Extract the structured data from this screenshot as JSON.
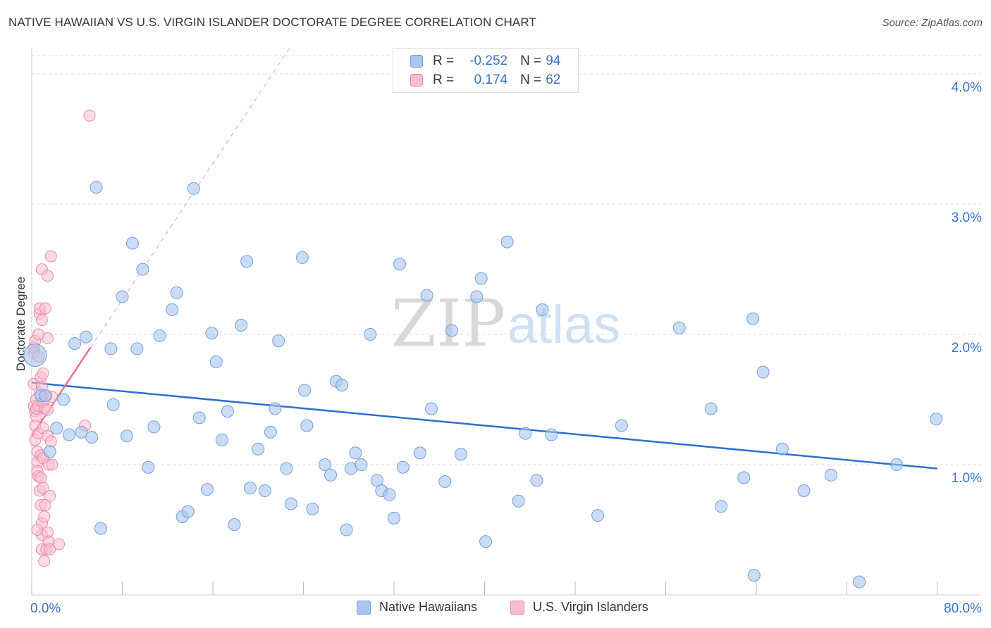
{
  "title": "NATIVE HAWAIIAN VS U.S. VIRGIN ISLANDER DOCTORATE DEGREE CORRELATION CHART",
  "source": "Source: ZipAtlas.com",
  "watermark": {
    "zip": "ZIP",
    "atlas": "atlas"
  },
  "legend": {
    "rows": [
      {
        "r_label": "R =",
        "r_value": "-0.252",
        "n_label": "N =",
        "n_value": "94"
      },
      {
        "r_label": "R =",
        "r_value": "0.174",
        "n_label": "N =",
        "n_value": "62"
      }
    ],
    "bottom": [
      "Native Hawaiians",
      "U.S. Virgin Islanders"
    ]
  },
  "colors": {
    "blue_fill": "#a9c6f0",
    "blue_stroke": "#6f9fe0",
    "blue_line": "#2a6fd0",
    "pink_fill": "#f7bdd0",
    "pink_stroke": "#ee89ab",
    "pink_line": "#e8709a",
    "axis_text": "#3a72c8",
    "grid": "#dddddd"
  },
  "chart_data": {
    "type": "scatter",
    "title": "NATIVE HAWAIIAN VS U.S. VIRGIN ISLANDER DOCTORATE DEGREE CORRELATION CHART",
    "xlabel": "",
    "ylabel": "Doctorate Degree",
    "xlim": [
      0,
      80
    ],
    "ylim": [
      0,
      4.2
    ],
    "x_tick_labels": [
      "0.0%",
      "80.0%"
    ],
    "y_ticks": [
      1.0,
      2.0,
      3.0,
      4.0
    ],
    "y_tick_labels": [
      "1.0%",
      "2.0%",
      "3.0%",
      "4.0%"
    ],
    "series": [
      {
        "name": "Native Hawaiians",
        "r": -0.252,
        "n": 94,
        "trend": {
          "x": [
            0,
            80
          ],
          "y": [
            1.63,
            0.97
          ]
        },
        "points": [
          [
            0.3,
            1.84
          ],
          [
            0.8,
            1.53
          ],
          [
            1.2,
            1.53
          ],
          [
            1.6,
            1.1
          ],
          [
            2.2,
            1.28
          ],
          [
            2.8,
            1.5
          ],
          [
            3.3,
            1.23
          ],
          [
            3.8,
            1.93
          ],
          [
            4.4,
            1.25
          ],
          [
            4.8,
            1.98
          ],
          [
            5.3,
            1.21
          ],
          [
            5.7,
            3.13
          ],
          [
            6.1,
            0.51
          ],
          [
            7.0,
            1.89
          ],
          [
            7.2,
            1.46
          ],
          [
            8.0,
            2.29
          ],
          [
            8.4,
            1.22
          ],
          [
            8.9,
            2.7
          ],
          [
            9.3,
            1.89
          ],
          [
            9.8,
            2.5
          ],
          [
            10.3,
            0.98
          ],
          [
            10.8,
            1.29
          ],
          [
            11.3,
            1.99
          ],
          [
            12.4,
            2.19
          ],
          [
            12.8,
            2.32
          ],
          [
            13.3,
            0.6
          ],
          [
            13.8,
            0.64
          ],
          [
            14.3,
            3.12
          ],
          [
            14.8,
            1.36
          ],
          [
            15.5,
            0.81
          ],
          [
            15.9,
            2.01
          ],
          [
            16.3,
            1.79
          ],
          [
            16.8,
            1.19
          ],
          [
            17.3,
            1.41
          ],
          [
            17.9,
            0.54
          ],
          [
            18.5,
            2.07
          ],
          [
            19.0,
            2.56
          ],
          [
            19.3,
            0.82
          ],
          [
            20.0,
            1.12
          ],
          [
            20.6,
            0.8
          ],
          [
            21.1,
            1.25
          ],
          [
            21.5,
            1.43
          ],
          [
            21.8,
            1.95
          ],
          [
            22.5,
            0.97
          ],
          [
            22.9,
            0.7
          ],
          [
            23.9,
            2.59
          ],
          [
            24.1,
            1.57
          ],
          [
            24.3,
            1.3
          ],
          [
            24.8,
            0.66
          ],
          [
            25.9,
            1.0
          ],
          [
            26.4,
            0.92
          ],
          [
            26.9,
            1.64
          ],
          [
            27.4,
            1.61
          ],
          [
            27.8,
            0.5
          ],
          [
            28.2,
            0.97
          ],
          [
            28.6,
            1.09
          ],
          [
            29.1,
            1.0
          ],
          [
            29.9,
            2.0
          ],
          [
            30.5,
            0.88
          ],
          [
            30.9,
            0.8
          ],
          [
            31.6,
            0.77
          ],
          [
            32.0,
            0.59
          ],
          [
            32.5,
            2.54
          ],
          [
            32.8,
            0.98
          ],
          [
            34.3,
            1.09
          ],
          [
            34.9,
            2.3
          ],
          [
            35.3,
            1.43
          ],
          [
            36.5,
            0.87
          ],
          [
            37.1,
            2.03
          ],
          [
            37.9,
            1.08
          ],
          [
            39.3,
            2.29
          ],
          [
            39.7,
            2.43
          ],
          [
            40.1,
            0.41
          ],
          [
            42.0,
            2.71
          ],
          [
            43.0,
            0.72
          ],
          [
            43.6,
            1.24
          ],
          [
            44.6,
            0.88
          ],
          [
            45.1,
            2.19
          ],
          [
            45.9,
            1.23
          ],
          [
            50.0,
            0.61
          ],
          [
            52.1,
            1.3
          ],
          [
            57.2,
            2.05
          ],
          [
            60.0,
            1.43
          ],
          [
            60.9,
            0.68
          ],
          [
            62.9,
            0.9
          ],
          [
            63.7,
            2.12
          ],
          [
            63.8,
            0.15
          ],
          [
            64.6,
            1.71
          ],
          [
            66.3,
            1.12
          ],
          [
            68.2,
            0.8
          ],
          [
            70.6,
            0.92
          ],
          [
            73.1,
            0.1
          ],
          [
            76.4,
            1.0
          ],
          [
            79.9,
            1.35
          ]
        ]
      },
      {
        "name": "U.S. Virgin Islanders",
        "r": 0.174,
        "n": 62,
        "trend": {
          "x": [
            0,
            5.2
          ],
          "y": [
            1.22,
            1.9
          ]
        },
        "points": [
          [
            0.2,
            1.9
          ],
          [
            0.2,
            1.86
          ],
          [
            0.3,
            1.95
          ],
          [
            0.2,
            1.62
          ],
          [
            0.2,
            1.45
          ],
          [
            0.3,
            1.41
          ],
          [
            0.3,
            1.3
          ],
          [
            0.3,
            1.19
          ],
          [
            0.4,
            1.5
          ],
          [
            0.4,
            1.37
          ],
          [
            0.4,
            1.43
          ],
          [
            0.5,
            1.1
          ],
          [
            0.5,
            1.02
          ],
          [
            0.5,
            0.95
          ],
          [
            0.6,
            1.83
          ],
          [
            0.6,
            1.45
          ],
          [
            0.6,
            1.24
          ],
          [
            0.6,
            0.91
          ],
          [
            0.7,
            2.16
          ],
          [
            0.7,
            2.2
          ],
          [
            0.7,
            1.55
          ],
          [
            0.7,
            0.8
          ],
          [
            0.8,
            1.67
          ],
          [
            0.8,
            1.07
          ],
          [
            0.8,
            0.9
          ],
          [
            0.8,
            0.69
          ],
          [
            0.9,
            2.5
          ],
          [
            0.9,
            2.11
          ],
          [
            0.9,
            1.6
          ],
          [
            0.9,
            0.55
          ],
          [
            0.9,
            0.46
          ],
          [
            0.9,
            0.35
          ],
          [
            1.0,
            1.48
          ],
          [
            1.0,
            1.28
          ],
          [
            1.0,
            1.05
          ],
          [
            1.0,
            0.82
          ],
          [
            1.1,
            0.6
          ],
          [
            1.1,
            0.26
          ],
          [
            1.2,
            2.2
          ],
          [
            1.2,
            1.43
          ],
          [
            1.2,
            0.69
          ],
          [
            1.3,
            1.53
          ],
          [
            1.3,
            0.35
          ],
          [
            1.4,
            2.45
          ],
          [
            1.4,
            1.97
          ],
          [
            1.4,
            1.42
          ],
          [
            1.4,
            1.22
          ],
          [
            1.4,
            0.48
          ],
          [
            1.5,
            1.0
          ],
          [
            1.5,
            0.41
          ],
          [
            1.6,
            0.35
          ],
          [
            1.6,
            0.76
          ],
          [
            1.7,
            2.6
          ],
          [
            1.7,
            1.18
          ],
          [
            1.8,
            1.0
          ],
          [
            2.4,
            0.39
          ],
          [
            4.7,
            1.3
          ],
          [
            5.1,
            3.68
          ],
          [
            1.0,
            1.7
          ],
          [
            0.5,
            0.5
          ],
          [
            1.8,
            1.52
          ],
          [
            0.6,
            2.0
          ]
        ]
      }
    ]
  }
}
